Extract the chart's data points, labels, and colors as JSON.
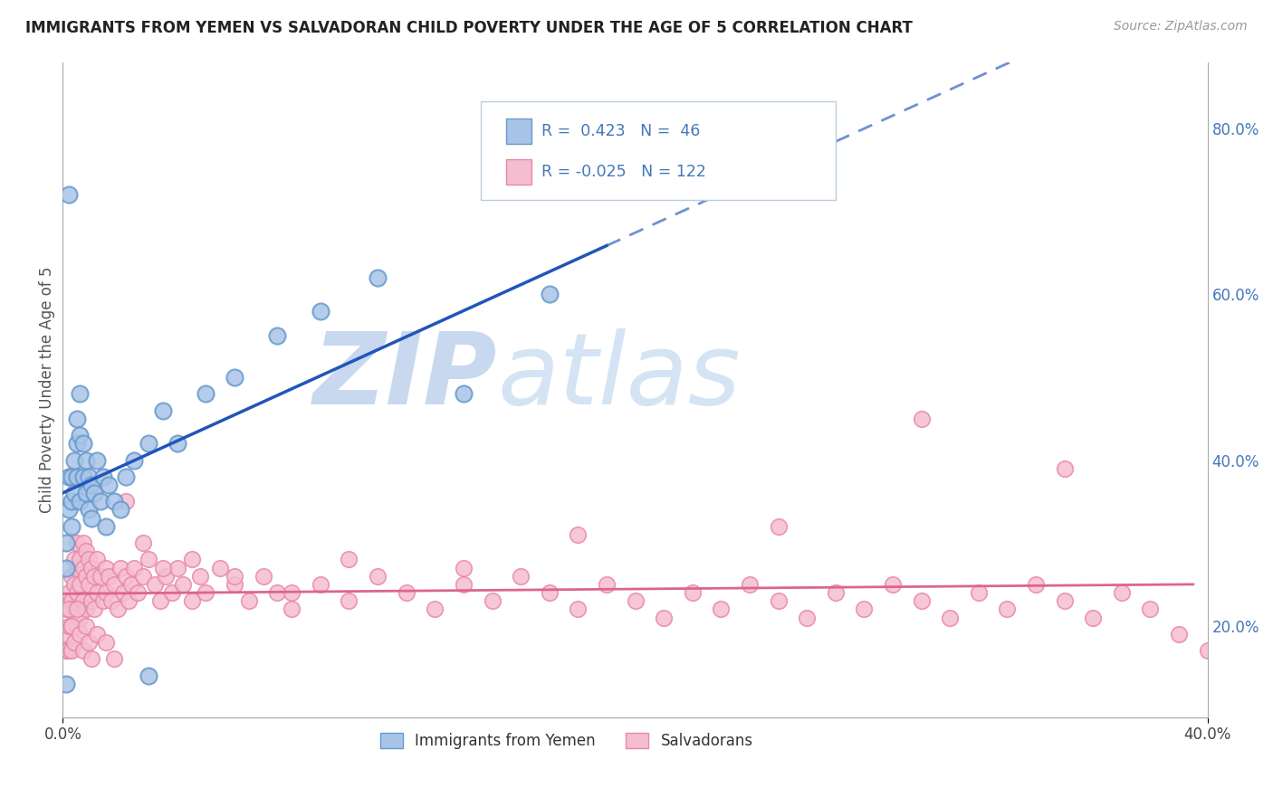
{
  "title": "IMMIGRANTS FROM YEMEN VS SALVADORAN CHILD POVERTY UNDER THE AGE OF 5 CORRELATION CHART",
  "source": "Source: ZipAtlas.com",
  "ylabel": "Child Poverty Under the Age of 5",
  "xlim": [
    0.0,
    0.4
  ],
  "ylim": [
    0.09,
    0.88
  ],
  "blue_R": 0.423,
  "blue_N": 46,
  "pink_R": -0.025,
  "pink_N": 122,
  "blue_label": "Immigrants from Yemen",
  "pink_label": "Salvadorans",
  "blue_scatter_color": "#a8c4e8",
  "blue_scatter_edge": "#6699cc",
  "pink_scatter_color": "#f5bdd0",
  "pink_scatter_edge": "#e888aa",
  "blue_line_color": "#2255bb",
  "pink_line_color": "#dd6688",
  "watermark_zip": "ZIP",
  "watermark_atlas": "atlas",
  "watermark_color": "#c8d8ee",
  "background_color": "#ffffff",
  "grid_color": "#cccccc",
  "legend_box_color": "#f0f4f8",
  "legend_box_edge": "#bbccdd",
  "right_axis_color": "#4477bb",
  "ylabel_vals": [
    0.2,
    0.4,
    0.6,
    0.8
  ],
  "ylabel_ticks_right": [
    "20.0%",
    "40.0%",
    "60.0%",
    "80.0%"
  ],
  "blue_x": [
    0.001,
    0.001,
    0.002,
    0.002,
    0.003,
    0.003,
    0.003,
    0.004,
    0.004,
    0.005,
    0.005,
    0.005,
    0.006,
    0.006,
    0.006,
    0.007,
    0.007,
    0.008,
    0.008,
    0.009,
    0.009,
    0.01,
    0.01,
    0.011,
    0.012,
    0.013,
    0.014,
    0.015,
    0.016,
    0.018,
    0.02,
    0.022,
    0.025,
    0.03,
    0.035,
    0.04,
    0.05,
    0.06,
    0.075,
    0.09,
    0.11,
    0.14,
    0.17,
    0.03,
    0.002,
    0.001
  ],
  "blue_y": [
    0.27,
    0.3,
    0.38,
    0.34,
    0.35,
    0.38,
    0.32,
    0.4,
    0.36,
    0.42,
    0.45,
    0.38,
    0.43,
    0.48,
    0.35,
    0.38,
    0.42,
    0.36,
    0.4,
    0.34,
    0.38,
    0.33,
    0.37,
    0.36,
    0.4,
    0.35,
    0.38,
    0.32,
    0.37,
    0.35,
    0.34,
    0.38,
    0.4,
    0.42,
    0.46,
    0.42,
    0.48,
    0.5,
    0.55,
    0.58,
    0.62,
    0.48,
    0.6,
    0.14,
    0.72,
    0.13
  ],
  "pink_x": [
    0.001,
    0.001,
    0.001,
    0.002,
    0.002,
    0.002,
    0.003,
    0.003,
    0.003,
    0.003,
    0.004,
    0.004,
    0.004,
    0.005,
    0.005,
    0.005,
    0.005,
    0.006,
    0.006,
    0.006,
    0.007,
    0.007,
    0.007,
    0.008,
    0.008,
    0.008,
    0.009,
    0.009,
    0.01,
    0.01,
    0.011,
    0.011,
    0.012,
    0.012,
    0.013,
    0.014,
    0.015,
    0.015,
    0.016,
    0.017,
    0.018,
    0.019,
    0.02,
    0.021,
    0.022,
    0.023,
    0.024,
    0.025,
    0.026,
    0.028,
    0.03,
    0.032,
    0.034,
    0.036,
    0.038,
    0.04,
    0.042,
    0.045,
    0.048,
    0.05,
    0.055,
    0.06,
    0.065,
    0.07,
    0.075,
    0.08,
    0.09,
    0.1,
    0.11,
    0.12,
    0.13,
    0.14,
    0.15,
    0.16,
    0.17,
    0.18,
    0.19,
    0.2,
    0.21,
    0.22,
    0.23,
    0.24,
    0.25,
    0.26,
    0.27,
    0.28,
    0.29,
    0.3,
    0.31,
    0.32,
    0.33,
    0.34,
    0.35,
    0.36,
    0.37,
    0.38,
    0.39,
    0.4,
    0.002,
    0.003,
    0.004,
    0.005,
    0.006,
    0.007,
    0.008,
    0.009,
    0.01,
    0.012,
    0.015,
    0.018,
    0.022,
    0.028,
    0.035,
    0.045,
    0.06,
    0.08,
    0.1,
    0.14,
    0.18,
    0.25,
    0.3,
    0.35
  ],
  "pink_y": [
    0.22,
    0.19,
    0.17,
    0.24,
    0.2,
    0.17,
    0.26,
    0.23,
    0.2,
    0.17,
    0.28,
    0.25,
    0.22,
    0.3,
    0.27,
    0.24,
    0.2,
    0.28,
    0.25,
    0.21,
    0.3,
    0.27,
    0.23,
    0.29,
    0.26,
    0.22,
    0.28,
    0.25,
    0.27,
    0.23,
    0.26,
    0.22,
    0.28,
    0.24,
    0.26,
    0.23,
    0.27,
    0.24,
    0.26,
    0.23,
    0.25,
    0.22,
    0.27,
    0.24,
    0.26,
    0.23,
    0.25,
    0.27,
    0.24,
    0.26,
    0.28,
    0.25,
    0.23,
    0.26,
    0.24,
    0.27,
    0.25,
    0.23,
    0.26,
    0.24,
    0.27,
    0.25,
    0.23,
    0.26,
    0.24,
    0.22,
    0.25,
    0.23,
    0.26,
    0.24,
    0.22,
    0.25,
    0.23,
    0.26,
    0.24,
    0.22,
    0.25,
    0.23,
    0.21,
    0.24,
    0.22,
    0.25,
    0.23,
    0.21,
    0.24,
    0.22,
    0.25,
    0.23,
    0.21,
    0.24,
    0.22,
    0.25,
    0.23,
    0.21,
    0.24,
    0.22,
    0.19,
    0.17,
    0.22,
    0.2,
    0.18,
    0.22,
    0.19,
    0.17,
    0.2,
    0.18,
    0.16,
    0.19,
    0.18,
    0.16,
    0.35,
    0.3,
    0.27,
    0.28,
    0.26,
    0.24,
    0.28,
    0.27,
    0.31,
    0.32,
    0.45,
    0.39
  ]
}
